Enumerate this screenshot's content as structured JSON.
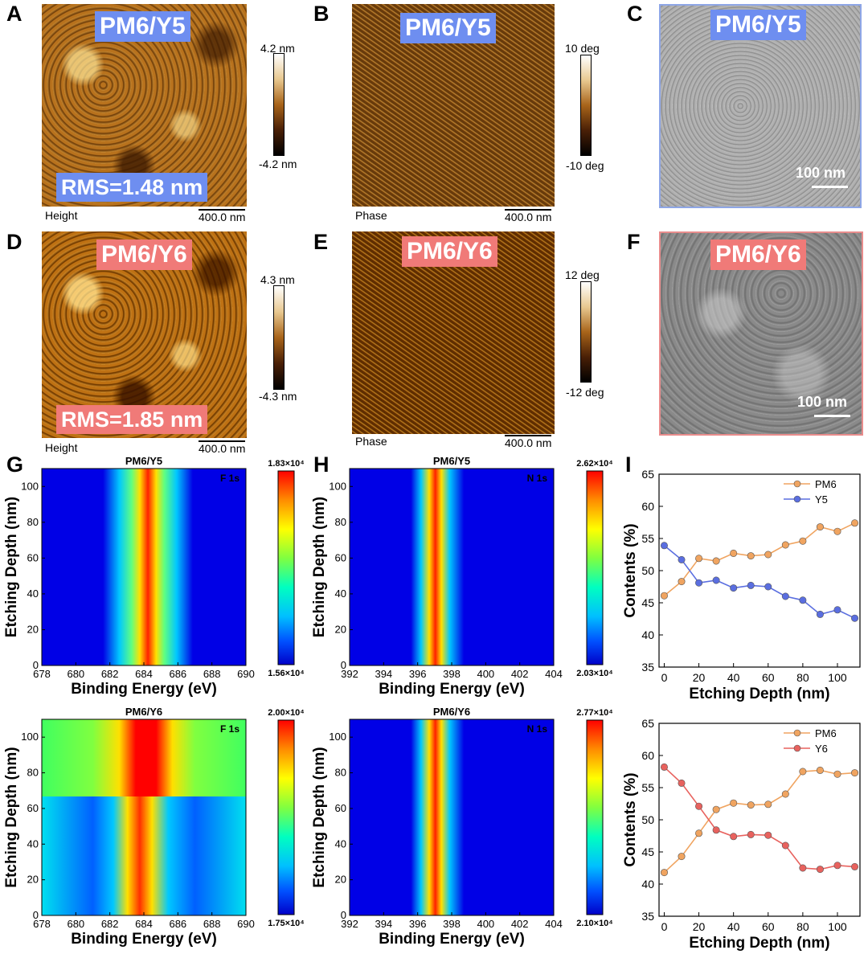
{
  "panels": {
    "A": {
      "letter": "A",
      "tag": "PM6/Y5",
      "rms": "RMS=1.48 nm",
      "mode": "Height",
      "scale": "400.0 nm",
      "cb_top": "4.2 nm",
      "cb_bot": "-4.2 nm"
    },
    "B": {
      "letter": "B",
      "tag": "PM6/Y5",
      "mode": "Phase",
      "scale": "400.0 nm",
      "cb_top": "10 deg",
      "cb_bot": "-10 deg"
    },
    "C": {
      "letter": "C",
      "tag": "PM6/Y5",
      "scale": "100 nm"
    },
    "D": {
      "letter": "D",
      "tag": "PM6/Y6",
      "rms": "RMS=1.85 nm",
      "mode": "Height",
      "scale": "400.0 nm",
      "cb_top": "4.3 nm",
      "cb_bot": "-4.3 nm"
    },
    "E": {
      "letter": "E",
      "tag": "PM6/Y6",
      "mode": "Phase",
      "scale": "400.0 nm",
      "cb_top": "12 deg",
      "cb_bot": "-12 deg"
    },
    "F": {
      "letter": "F",
      "tag": "PM6/Y6",
      "scale": "100 nm"
    },
    "G": {
      "letter": "G"
    },
    "H": {
      "letter": "H"
    },
    "I": {
      "letter": "I"
    }
  },
  "maps": [
    {
      "id": "g1",
      "title": "PM6/Y5",
      "element": "F 1s",
      "cb_max": "1.83×10⁴",
      "cb_min": "1.56×10⁴",
      "xlabel": "Binding Energy (eV)",
      "ylabel": "Etching Depth (nm)",
      "xticks": [
        "678",
        "680",
        "682",
        "684",
        "686",
        "688",
        "690"
      ],
      "yticks": [
        "0",
        "20",
        "40",
        "60",
        "80",
        "100"
      ]
    },
    {
      "id": "h1",
      "title": "PM6/Y5",
      "element": "N 1s",
      "cb_max": "2.62×10⁴",
      "cb_min": "2.03×10⁴",
      "xlabel": "Binding Energy (eV)",
      "ylabel": "Etching Depth (nm)",
      "xticks": [
        "392",
        "394",
        "396",
        "398",
        "400",
        "402",
        "404"
      ],
      "yticks": [
        "0",
        "20",
        "40",
        "60",
        "80",
        "100"
      ]
    },
    {
      "id": "g2",
      "title": "PM6/Y6",
      "element": "F 1s",
      "cb_max": "2.00×10⁴",
      "cb_min": "1.75×10⁴",
      "xlabel": "Binding Energy (eV)",
      "ylabel": "Etching Depth (nm)",
      "xticks": [
        "678",
        "680",
        "682",
        "684",
        "686",
        "688",
        "690"
      ],
      "yticks": [
        "0",
        "20",
        "40",
        "60",
        "80",
        "100"
      ]
    },
    {
      "id": "h2",
      "title": "PM6/Y6",
      "element": "N 1s",
      "cb_max": "2.77×10⁴",
      "cb_min": "2.10×10⁴",
      "xlabel": "Binding Energy (eV)",
      "ylabel": "Etching Depth (nm)",
      "xticks": [
        "392",
        "394",
        "396",
        "398",
        "400",
        "402",
        "404"
      ],
      "yticks": [
        "0",
        "20",
        "40",
        "60",
        "80",
        "100"
      ]
    }
  ],
  "chart_data": [
    {
      "type": "line",
      "xlabel": "Etching Depth (nm)",
      "ylabel": "Contents (%)",
      "xlim": [
        -3,
        113
      ],
      "ylim": [
        35,
        65
      ],
      "xticks": [
        0,
        20,
        40,
        60,
        80,
        100
      ],
      "yticks": [
        35,
        40,
        45,
        50,
        55,
        60,
        65
      ],
      "x": [
        0,
        10,
        20,
        30,
        40,
        50,
        60,
        70,
        80,
        90,
        100,
        110
      ],
      "series": [
        {
          "name": "PM6",
          "color": "#f0a460",
          "values": [
            46.1,
            48.3,
            51.9,
            51.5,
            52.7,
            52.3,
            52.5,
            54.0,
            54.6,
            56.8,
            56.1,
            57.4
          ]
        },
        {
          "name": "Y5",
          "color": "#5a6ee0",
          "values": [
            53.9,
            51.7,
            48.1,
            48.5,
            47.3,
            47.7,
            47.5,
            46.0,
            45.4,
            43.2,
            43.9,
            42.6
          ]
        }
      ]
    },
    {
      "type": "line",
      "xlabel": "Etching Depth (nm)",
      "ylabel": "Contents (%)",
      "xlim": [
        -3,
        113
      ],
      "ylim": [
        35,
        65
      ],
      "xticks": [
        0,
        20,
        40,
        60,
        80,
        100
      ],
      "yticks": [
        35,
        40,
        45,
        50,
        55,
        60,
        65
      ],
      "x": [
        0,
        10,
        20,
        30,
        40,
        50,
        60,
        70,
        80,
        90,
        100,
        110
      ],
      "series": [
        {
          "name": "PM6",
          "color": "#f0a460",
          "values": [
            41.8,
            44.3,
            47.9,
            51.6,
            52.6,
            52.3,
            52.4,
            54.0,
            57.5,
            57.7,
            57.1,
            57.3
          ]
        },
        {
          "name": "Y6",
          "color": "#e8625e",
          "values": [
            58.2,
            55.7,
            52.1,
            48.4,
            47.4,
            47.7,
            47.6,
            46.0,
            42.5,
            42.3,
            42.9,
            42.7
          ]
        }
      ]
    }
  ]
}
